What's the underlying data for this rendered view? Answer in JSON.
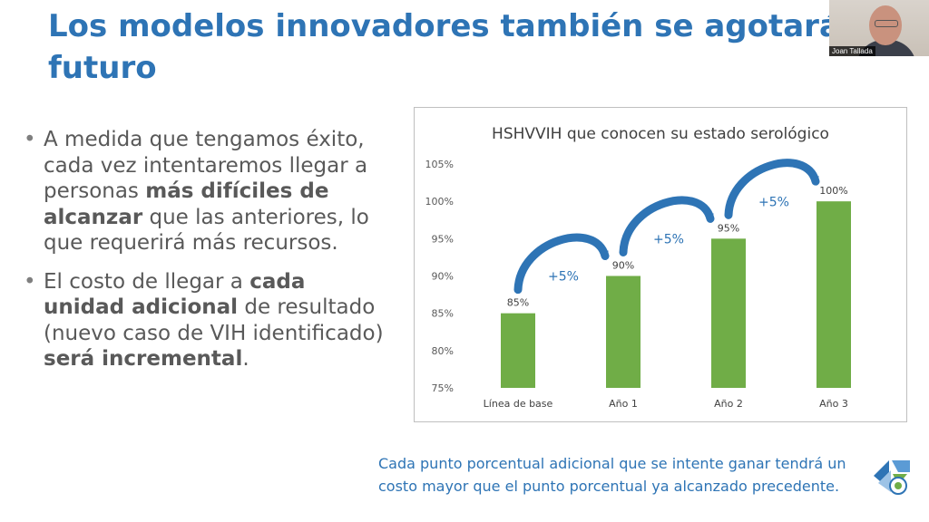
{
  "slide": {
    "title_line1": "Los modelos innovadores también se agotarán",
    "title_line2": "futuro"
  },
  "video": {
    "participant_name": "Joan Tallada"
  },
  "bullets": [
    {
      "parts": [
        {
          "t": "A medida que tengamos éxito, cada vez intentaremos llegar a personas ",
          "b": false
        },
        {
          "t": "más difíciles de alcanzar",
          "b": true
        },
        {
          "t": " que las anteriores, lo que requerirá más recursos.",
          "b": false
        }
      ]
    },
    {
      "parts": [
        {
          "t": "El costo de llegar a ",
          "b": false
        },
        {
          "t": "cada unidad adicional",
          "b": true
        },
        {
          "t": " de resultado (nuevo caso de VIH identificado) ",
          "b": false
        },
        {
          "t": "será incremental",
          "b": true
        },
        {
          "t": ".",
          "b": false
        }
      ]
    }
  ],
  "footnote": "Cada punto porcentual adicional que se intente ganar tendrá un costo mayor que el punto porcentual ya alcanzado precedente.",
  "chart_data": {
    "type": "bar",
    "title": "HSHVVIH que conocen su estado serológico",
    "categories": [
      "Línea de base",
      "Año 1",
      "Año 2",
      "Año 3"
    ],
    "values": [
      85,
      90,
      95,
      100
    ],
    "data_labels": [
      "85%",
      "90%",
      "95%",
      "100%"
    ],
    "ylim": [
      75,
      105
    ],
    "yticks": [
      75,
      80,
      85,
      90,
      95,
      100,
      105
    ],
    "ytick_labels": [
      "75%",
      "80%",
      "85%",
      "90%",
      "95%",
      "100%",
      "105%"
    ],
    "bar_color": "#70ad47",
    "grid": false,
    "annotations": [
      "+5%",
      "+5%",
      "+5%"
    ],
    "annotation_color": "#2e74b5"
  },
  "colors": {
    "title": "#2e74b5",
    "body_text": "#595959",
    "accent": "#2e74b5"
  }
}
